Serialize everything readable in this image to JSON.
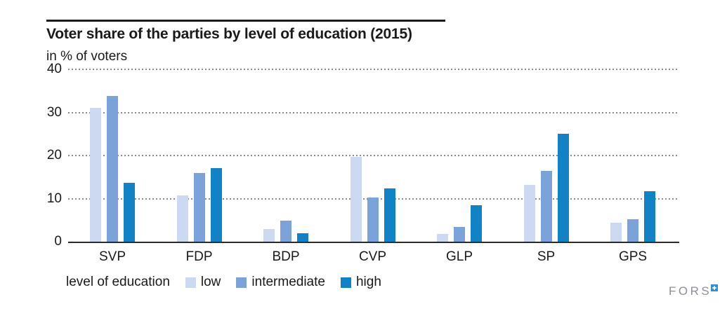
{
  "header": {
    "title": "Voter share of the parties by level of education (2015)",
    "subtitle": "in % of voters"
  },
  "chart_data": {
    "type": "bar",
    "title": "Voter share of the parties by level of education (2015)",
    "ylabel": "in % of voters",
    "xlabel": "",
    "categories": [
      "SVP",
      "FDP",
      "BDP",
      "CVP",
      "GLP",
      "SP",
      "GPS"
    ],
    "series": [
      {
        "name": "low",
        "color": "#ccd9f0",
        "values": [
          31.0,
          10.7,
          3.0,
          19.7,
          1.8,
          13.2,
          4.4
        ]
      },
      {
        "name": "intermediate",
        "color": "#7ba3d9",
        "values": [
          33.8,
          16.0,
          4.8,
          10.3,
          3.4,
          16.4,
          5.2
        ]
      },
      {
        "name": "high",
        "color": "#1182c6",
        "values": [
          13.6,
          17.1,
          1.9,
          12.4,
          8.5,
          25.0,
          11.7
        ]
      }
    ],
    "ylim": [
      0,
      40
    ],
    "yticks": [
      0,
      10,
      20,
      30,
      40
    ],
    "grid": true,
    "gridline_style": "dashed",
    "legend_title": "level of education",
    "legend_position": "bottom"
  },
  "legend": {
    "title": "level of education",
    "items": [
      {
        "label": "low",
        "color": "#ccd9f0"
      },
      {
        "label": "intermediate",
        "color": "#7ba3d9"
      },
      {
        "label": "high",
        "color": "#1182c6"
      }
    ]
  },
  "footer": {
    "logo_text": "FORS"
  },
  "colors": {
    "low": "#ccd9f0",
    "intermediate": "#7ba3d9",
    "high": "#1182c6",
    "gridline": "#8c8c8c",
    "axis": "#2b2b2b",
    "text": "#1a1a1a",
    "logo_gray": "#8b9099",
    "logo_blue": "#2f8fd2"
  }
}
